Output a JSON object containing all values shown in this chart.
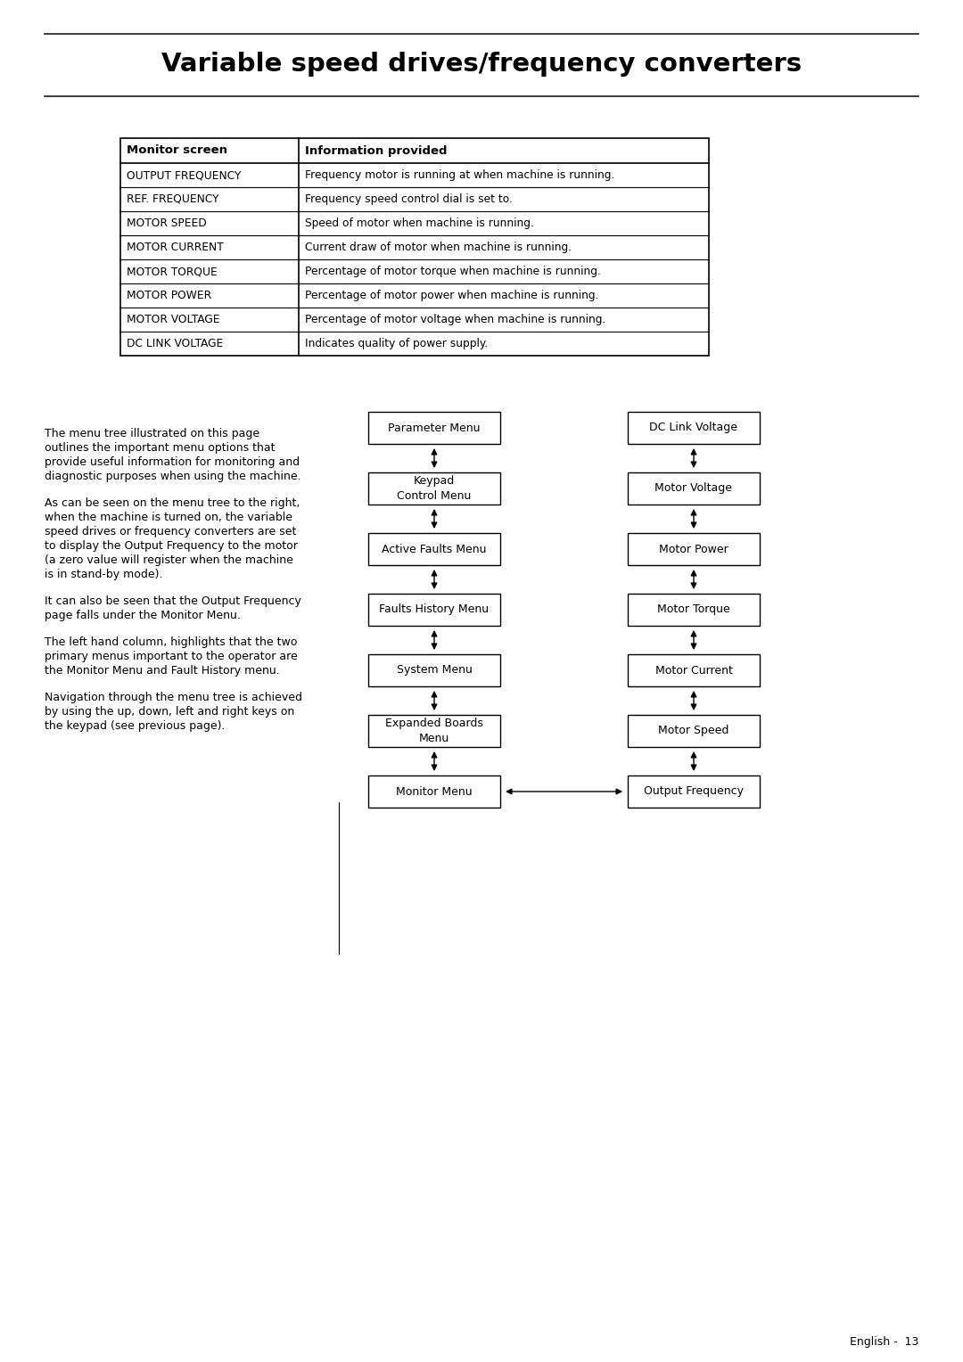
{
  "title": "Variable speed drives/frequency converters",
  "bg_color": "#ffffff",
  "title_color": "#000000",
  "title_fontsize": 21,
  "table_headers": [
    "Monitor screen",
    "Information provided"
  ],
  "table_rows": [
    [
      "OUTPUT FREQUENCY",
      "Frequency motor is running at when machine is running."
    ],
    [
      "REF. FREQUENCY",
      "Frequency speed control dial is set to."
    ],
    [
      "MOTOR SPEED",
      "Speed of motor when machine is running."
    ],
    [
      "MOTOR CURRENT",
      "Current draw of motor when machine is running."
    ],
    [
      "MOTOR TORQUE",
      "Percentage of motor torque when machine is running."
    ],
    [
      "MOTOR POWER",
      "Percentage of motor power when machine is running."
    ],
    [
      "MOTOR VOLTAGE",
      "Percentage of motor voltage when machine is running."
    ],
    [
      "DC LINK VOLTAGE",
      "Indicates quality of power supply."
    ]
  ],
  "body_paragraphs": [
    "The menu tree illustrated on this page outlines the important menu options that provide useful information for monitoring and diagnostic purposes when using the machine.",
    "As can be seen on the menu tree to the right, when the machine is turned on, the variable speed drives or frequency converters are set to display the Output Frequency to the motor (a zero value will register when the machine is in stand-by mode).",
    "It can also be seen that the Output Frequency page falls under the Monitor Menu.",
    "The left hand column, highlights that the two primary menus important to the operator are the Monitor Menu and Fault History menu.",
    "Navigation through the menu tree is achieved by using the up, down, left and right keys on the keypad (see previous page)."
  ],
  "left_boxes": [
    "Parameter Menu",
    "Keypad\nControl Menu",
    "Active Faults Menu",
    "Faults History Menu",
    "System Menu",
    "Expanded Boards\nMenu",
    "Monitor Menu"
  ],
  "right_boxes": [
    "DC Link Voltage",
    "Motor Voltage",
    "Motor Power",
    "Motor Torque",
    "Motor Current",
    "Motor Speed",
    "Output Frequency"
  ],
  "footer_text": "English -  13"
}
